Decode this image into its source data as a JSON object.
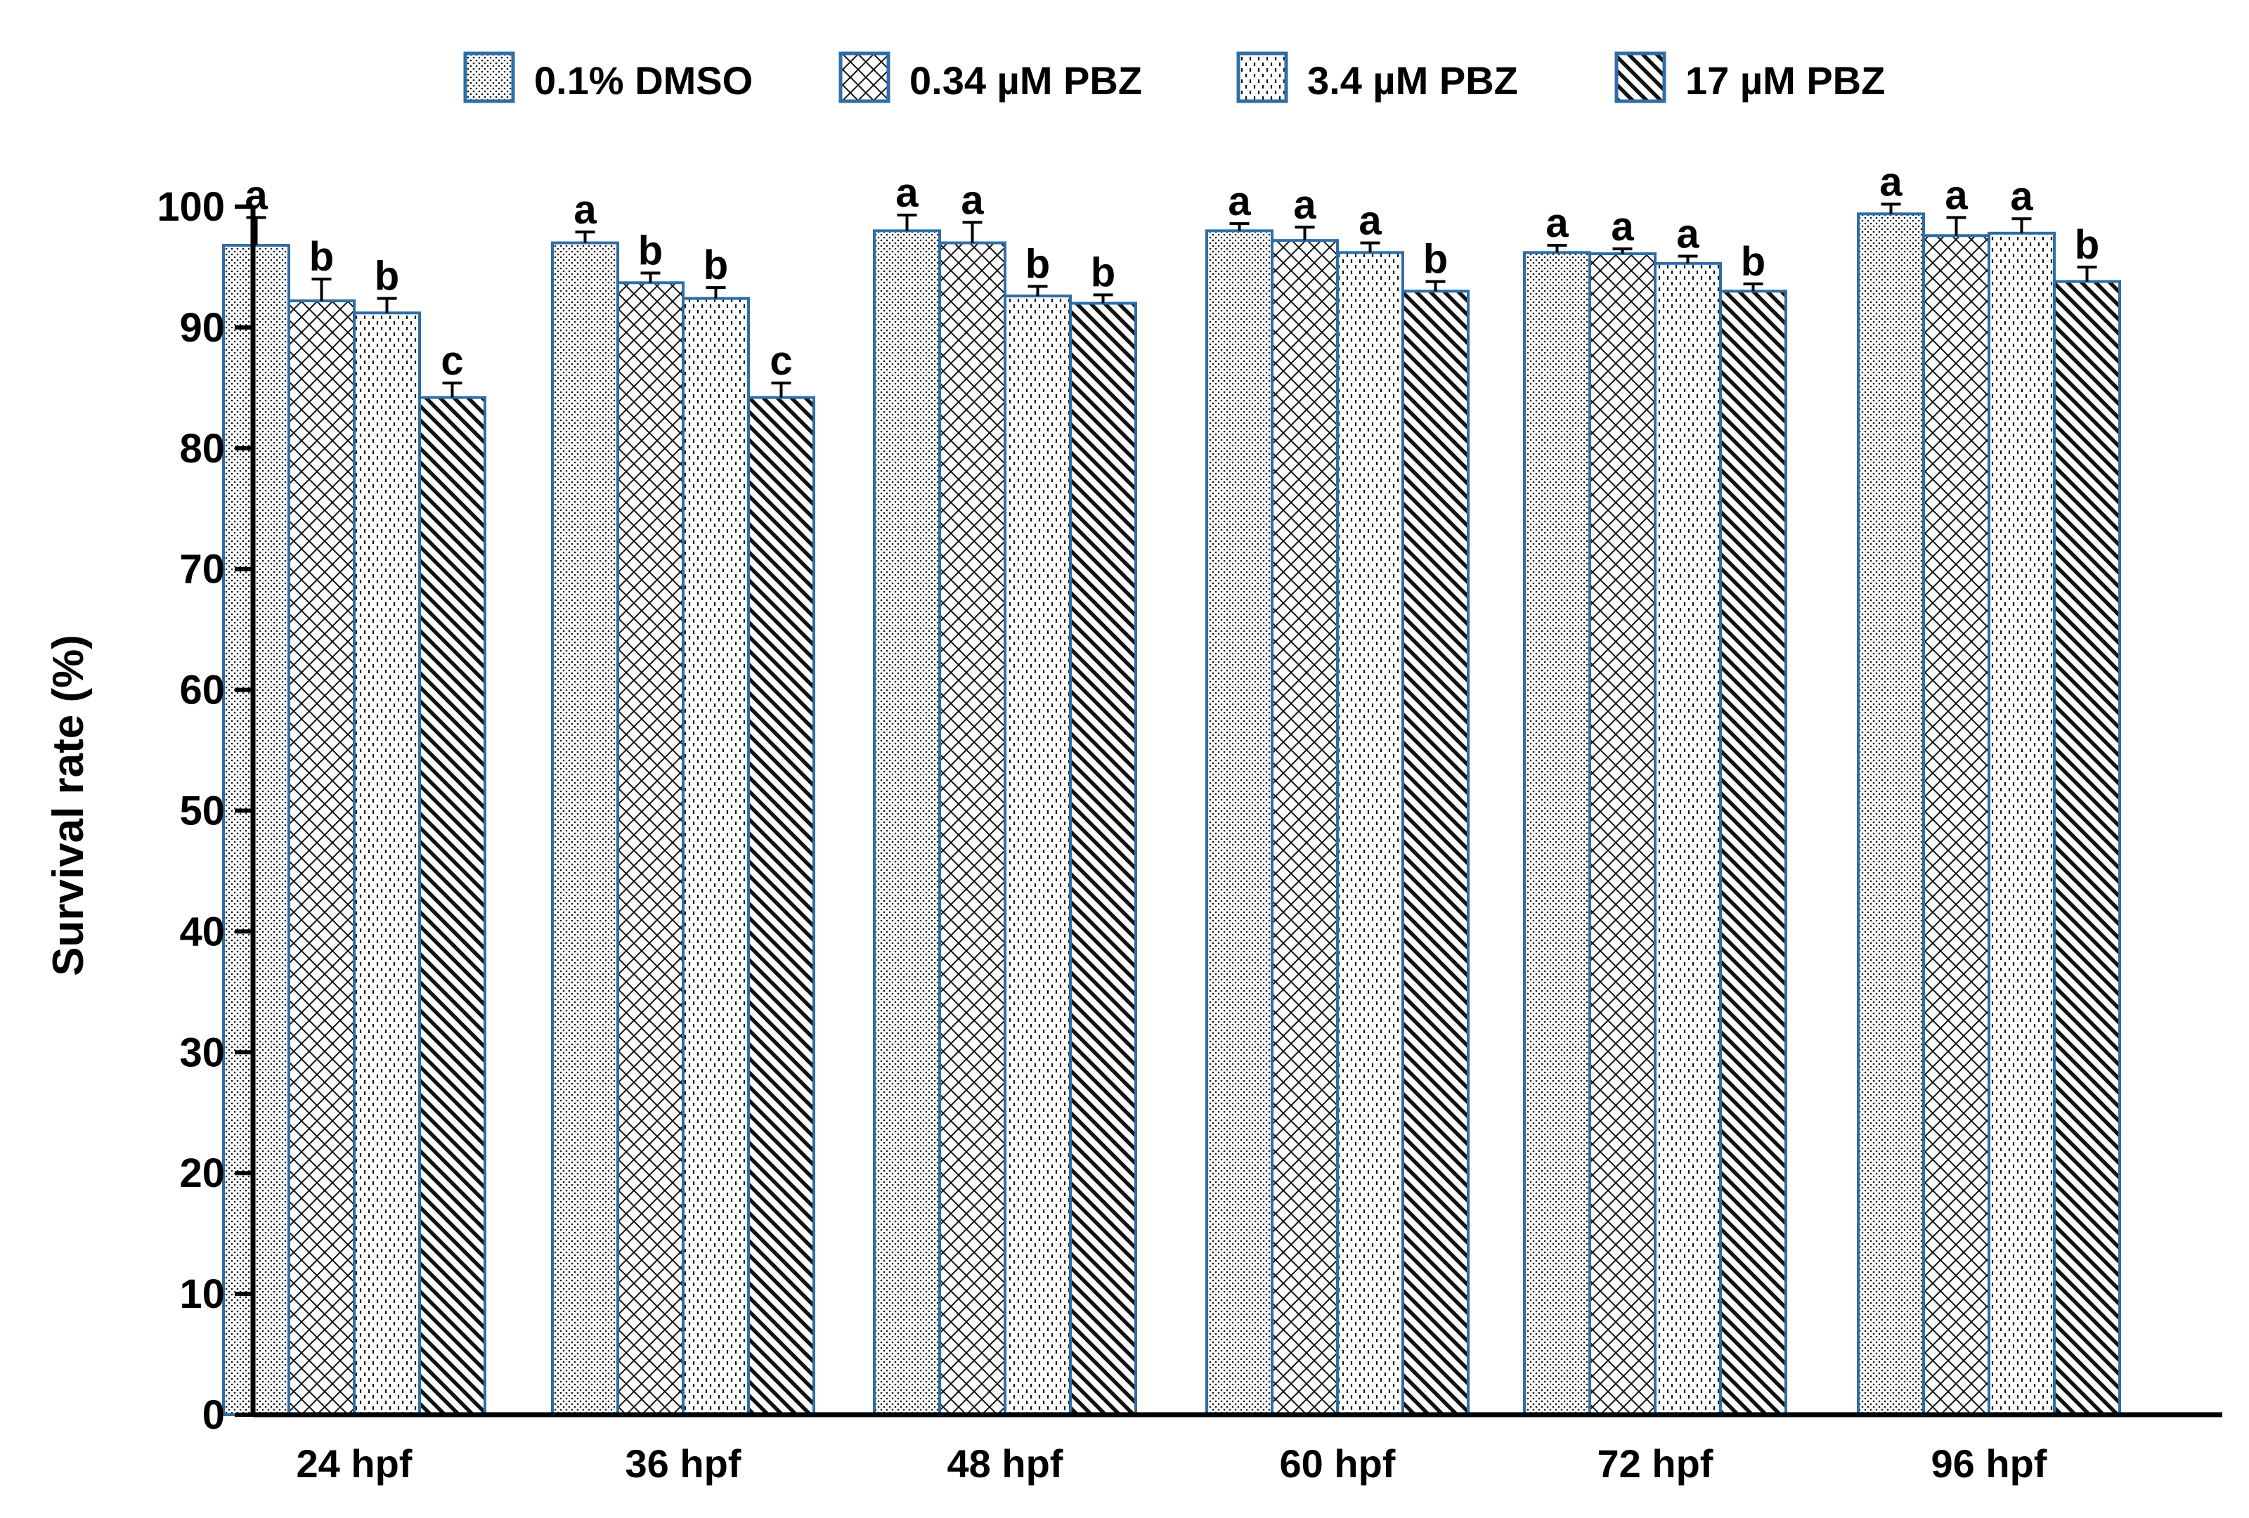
{
  "chart_data": {
    "type": "bar",
    "title": "",
    "xlabel": "",
    "ylabel": "Survival rate (%)",
    "ylim": [
      0,
      100
    ],
    "yticks": [
      "0",
      "10",
      "20",
      "30",
      "40",
      "50",
      "60",
      "70",
      "80",
      "90",
      "100"
    ],
    "grid": false,
    "legend_position": "top",
    "categories": [
      "24 hpf",
      "36 hpf",
      "48 hpf",
      "60 hpf",
      "72 hpf",
      "96 hpf"
    ],
    "series": [
      {
        "name": "0.1% DMSO",
        "pattern": "dots",
        "values": [
          96.8,
          97.0,
          98.0,
          98.0,
          96.2,
          99.4
        ],
        "errors": [
          2.3,
          0.9,
          1.3,
          0.6,
          0.6,
          0.8
        ],
        "letters": [
          "a",
          "a",
          "a",
          "a",
          "a",
          "a"
        ]
      },
      {
        "name": "0.34 µM PBZ",
        "pattern": "crosshatch",
        "values": [
          92.2,
          93.7,
          97.0,
          97.2,
          96.1,
          97.6
        ],
        "errors": [
          1.8,
          0.8,
          1.7,
          1.1,
          0.4,
          1.5
        ],
        "letters": [
          "b",
          "b",
          "a",
          "a",
          "a",
          "a"
        ]
      },
      {
        "name": "3.4 µM PBZ",
        "pattern": "dashes",
        "values": [
          91.2,
          92.4,
          92.6,
          96.2,
          95.3,
          97.8
        ],
        "errors": [
          1.2,
          0.9,
          0.8,
          0.8,
          0.6,
          1.2
        ],
        "letters": [
          "b",
          "b",
          "b",
          "a",
          "a",
          "a"
        ]
      },
      {
        "name": "17 µM PBZ",
        "pattern": "diagonal",
        "values": [
          84.2,
          84.2,
          92.0,
          93.0,
          93.0,
          93.8
        ],
        "errors": [
          1.2,
          1.2,
          0.7,
          0.8,
          0.6,
          1.2
        ],
        "letters": [
          "c",
          "c",
          "b",
          "b",
          "b",
          "b"
        ]
      }
    ]
  },
  "colors": {
    "bar_outline": "#2e6ea6",
    "pattern_ink": "#111111",
    "axis": "#000000",
    "background": "#ffffff"
  }
}
